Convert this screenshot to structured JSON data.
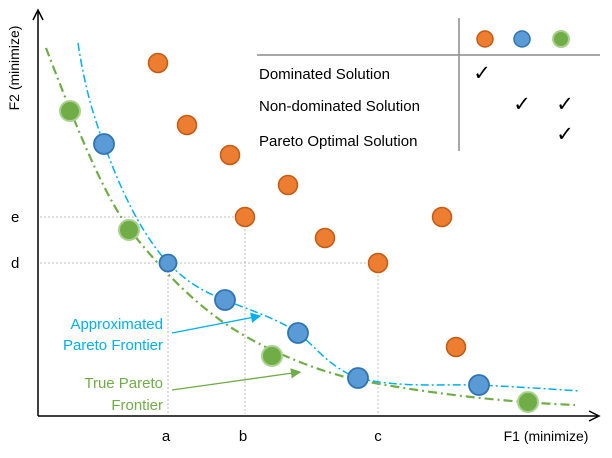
{
  "axes": {
    "x_label": "F1 (minimize)",
    "y_label": "F2 (minimize)",
    "x_ticks": [
      "a",
      "b",
      "c"
    ],
    "y_ticks": [
      "e",
      "d"
    ]
  },
  "colors": {
    "dominated": "#ED7D31",
    "non_dominated": "#5B9BD5",
    "pareto_optimal": "#70AD47",
    "approx_line": "#00B0F0",
    "true_line": "#70AD47",
    "guide": "#BFBFBF"
  },
  "legend": {
    "rows": [
      {
        "label": "Dominated Solution",
        "checks": [
          "✓",
          "",
          ""
        ]
      },
      {
        "label": "Non-dominated Solution",
        "checks": [
          "",
          "✓",
          "✓"
        ]
      },
      {
        "label": "Pareto Optimal Solution",
        "checks": [
          "",
          "",
          "✓"
        ]
      }
    ]
  },
  "annotations": {
    "approx": [
      "Approximated",
      "Pareto Frontier"
    ],
    "true_front": [
      "True Pareto",
      "Frontier"
    ]
  }
}
